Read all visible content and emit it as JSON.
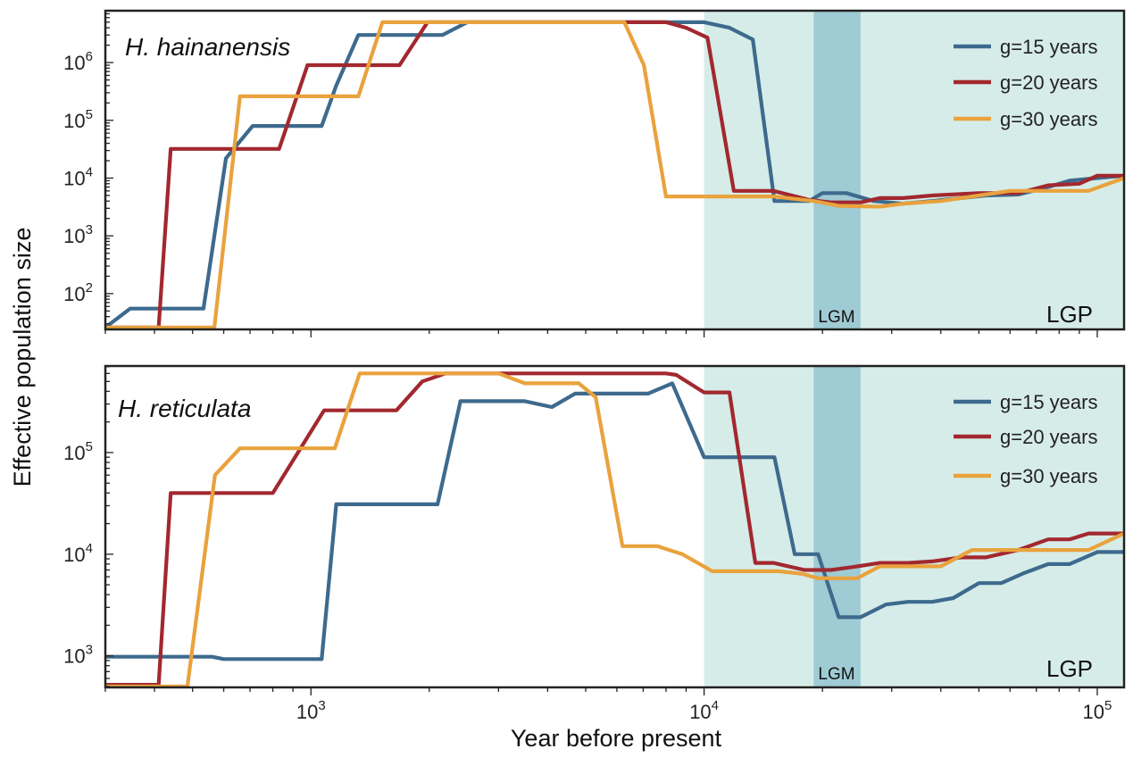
{
  "chart_data": {
    "type": "line",
    "xlabel": "Year before present",
    "ylabel": "Effective population size",
    "x_scale": "log",
    "y_scale": "log",
    "xlim": [
      300,
      117000
    ],
    "xticks": [
      1000,
      10000,
      100000
    ],
    "grid": false,
    "legend_placement": "top-right",
    "colors": {
      "g=15 years": "#3d6a8d",
      "g=20 years": "#a2282f",
      "g=30 years": "#e9a23d",
      "LGP": "#d6ece8",
      "LGM": "#9fcbd4"
    },
    "shaded_periods": [
      {
        "label": "LGP",
        "from": 10000,
        "to": 117000
      },
      {
        "label": "LGM",
        "from": 19000,
        "to": 25000
      }
    ],
    "panels": [
      {
        "title": "H. hainanensis",
        "ylim": [
          24,
          7900000
        ],
        "yticks": [
          100,
          1000,
          10000,
          100000,
          1000000
        ],
        "series": [
          {
            "name": "g=15 years",
            "points": [
              [
                300,
                26
              ],
              [
                347,
                55
              ],
              [
                533,
                55
              ],
              [
                608,
                22000
              ],
              [
                711,
                80000
              ],
              [
                1065,
                80000
              ],
              [
                1160,
                400000
              ],
              [
                1320,
                3000000
              ],
              [
                2160,
                3000000
              ],
              [
                2500,
                5000000
              ],
              [
                10000,
                5000000
              ],
              [
                11600,
                4000000
              ],
              [
                13300,
                2500000
              ],
              [
                15100,
                4000
              ],
              [
                18500,
                4000
              ],
              [
                20000,
                5500
              ],
              [
                23000,
                5500
              ],
              [
                27000,
                4000
              ],
              [
                32000,
                3600
              ],
              [
                38000,
                4000
              ],
              [
                45000,
                4500
              ],
              [
                52000,
                5000
              ],
              [
                63000,
                5200
              ],
              [
                75000,
                7000
              ],
              [
                85000,
                9000
              ],
              [
                100000,
                10000
              ],
              [
                117000,
                11000
              ]
            ]
          },
          {
            "name": "g=20 years",
            "points": [
              [
                300,
                26
              ],
              [
                410,
                26
              ],
              [
                440,
                32000
              ],
              [
                830,
                32000
              ],
              [
                980,
                900000
              ],
              [
                1680,
                900000
              ],
              [
                1980,
                5000000
              ],
              [
                8000,
                5000000
              ],
              [
                9000,
                4000000
              ],
              [
                10200,
                2700000
              ],
              [
                11900,
                6000
              ],
              [
                15000,
                6000
              ],
              [
                18500,
                4200
              ],
              [
                21000,
                3800
              ],
              [
                25000,
                3800
              ],
              [
                28000,
                4500
              ],
              [
                32000,
                4500
              ],
              [
                38000,
                5000
              ],
              [
                50000,
                5500
              ],
              [
                63000,
                5500
              ],
              [
                75000,
                7500
              ],
              [
                90000,
                8000
              ],
              [
                100000,
                11000
              ],
              [
                117000,
                11000
              ]
            ]
          },
          {
            "name": "g=30 years",
            "points": [
              [
                300,
                26
              ],
              [
                568,
                26
              ],
              [
                660,
                260000
              ],
              [
                1320,
                260000
              ],
              [
                1520,
                5000000
              ],
              [
                6270,
                5000000
              ],
              [
                7030,
                900000
              ],
              [
                8000,
                4800
              ],
              [
                15000,
                4800
              ],
              [
                19000,
                4000
              ],
              [
                22000,
                3300
              ],
              [
                28000,
                3200
              ],
              [
                32000,
                3600
              ],
              [
                40000,
                4000
              ],
              [
                50000,
                5000
              ],
              [
                60000,
                6000
              ],
              [
                95000,
                6000
              ],
              [
                117000,
                10000
              ]
            ]
          }
        ]
      },
      {
        "title": "H. reticulata",
        "ylim": [
          490,
          710000
        ],
        "yticks": [
          1000,
          10000,
          100000
        ],
        "series": [
          {
            "name": "g=15 years",
            "points": [
              [
                300,
                980
              ],
              [
                560,
                980
              ],
              [
                600,
                930
              ],
              [
                1065,
                930
              ],
              [
                1160,
                31000
              ],
              [
                2100,
                31000
              ],
              [
                2400,
                320000
              ],
              [
                3500,
                320000
              ],
              [
                4100,
                280000
              ],
              [
                4700,
                380000
              ],
              [
                7200,
                380000
              ],
              [
                8300,
                480000
              ],
              [
                10000,
                90000
              ],
              [
                15100,
                90000
              ],
              [
                17000,
                10000
              ],
              [
                19500,
                10000
              ],
              [
                22000,
                2400
              ],
              [
                25000,
                2400
              ],
              [
                29000,
                3200
              ],
              [
                33000,
                3400
              ],
              [
                38000,
                3400
              ],
              [
                43000,
                3700
              ],
              [
                50000,
                5200
              ],
              [
                57000,
                5200
              ],
              [
                65000,
                6500
              ],
              [
                75000,
                8000
              ],
              [
                85000,
                8000
              ],
              [
                100000,
                10500
              ],
              [
                117000,
                10500
              ]
            ]
          },
          {
            "name": "g=20 years",
            "points": [
              [
                300,
                520
              ],
              [
                410,
                520
              ],
              [
                440,
                40000
              ],
              [
                800,
                40000
              ],
              [
                1080,
                260000
              ],
              [
                1650,
                260000
              ],
              [
                1920,
                500000
              ],
              [
                2200,
                600000
              ],
              [
                8000,
                600000
              ],
              [
                8500,
                580000
              ],
              [
                10000,
                390000
              ],
              [
                11600,
                390000
              ],
              [
                13500,
                8200
              ],
              [
                15000,
                8200
              ],
              [
                18000,
                7000
              ],
              [
                21000,
                7000
              ],
              [
                24000,
                7500
              ],
              [
                28000,
                8200
              ],
              [
                33000,
                8200
              ],
              [
                38000,
                8500
              ],
              [
                45000,
                9300
              ],
              [
                52000,
                9300
              ],
              [
                63000,
                11000
              ],
              [
                75000,
                14000
              ],
              [
                85000,
                14000
              ],
              [
                95000,
                16000
              ],
              [
                117000,
                16000
              ]
            ]
          },
          {
            "name": "g=30 years",
            "points": [
              [
                300,
                500
              ],
              [
                485,
                500
              ],
              [
                570,
                60000
              ],
              [
                660,
                110000
              ],
              [
                1150,
                110000
              ],
              [
                1330,
                600000
              ],
              [
                3000,
                600000
              ],
              [
                3500,
                480000
              ],
              [
                4800,
                480000
              ],
              [
                5300,
                350000
              ],
              [
                6200,
                12000
              ],
              [
                7600,
                12000
              ],
              [
                8800,
                10000
              ],
              [
                10500,
                6800
              ],
              [
                15500,
                6800
              ],
              [
                17800,
                6400
              ],
              [
                19500,
                5800
              ],
              [
                24500,
                5800
              ],
              [
                28000,
                7600
              ],
              [
                40000,
                7600
              ],
              [
                48000,
                11000
              ],
              [
                95000,
                11000
              ],
              [
                117000,
                16000
              ]
            ]
          }
        ]
      }
    ]
  }
}
